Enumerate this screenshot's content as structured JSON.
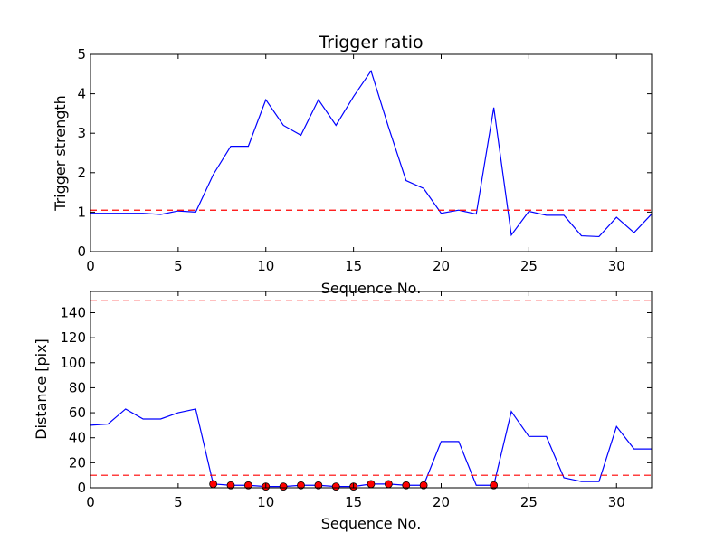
{
  "chart_data": [
    {
      "type": "line",
      "title": "Trigger ratio",
      "xlabel": "Sequence No.",
      "ylabel": "Trigger strength",
      "xlim": [
        0,
        32
      ],
      "ylim": [
        0,
        5
      ],
      "xticks": [
        0,
        5,
        10,
        15,
        20,
        25,
        30
      ],
      "yticks": [
        0,
        1,
        2,
        3,
        4,
        5
      ],
      "grid": false,
      "series": [
        {
          "color": "#0000ff",
          "x": [
            0,
            1,
            2,
            3,
            4,
            5,
            6,
            7,
            8,
            9,
            10,
            11,
            12,
            13,
            14,
            15,
            16,
            17,
            18,
            19,
            20,
            21,
            22,
            23,
            24,
            25,
            26,
            27,
            28,
            29,
            30,
            31,
            32
          ],
          "y": [
            0.97,
            0.97,
            0.97,
            0.97,
            0.94,
            1.03,
            1.0,
            1.95,
            2.67,
            2.67,
            3.85,
            3.2,
            2.95,
            3.85,
            3.2,
            3.93,
            4.58,
            3.15,
            1.8,
            1.6,
            0.97,
            1.05,
            0.95,
            3.65,
            0.42,
            1.02,
            0.92,
            0.92,
            0.4,
            0.38,
            0.87,
            0.48,
            0.95
          ]
        }
      ],
      "reference_lines": [
        {
          "y": 1.05,
          "color": "#ff0000",
          "style": "dashed"
        }
      ]
    },
    {
      "type": "line",
      "title": "",
      "xlabel": "Sequence No.",
      "ylabel": "Distance [pix]",
      "xlim": [
        0,
        32
      ],
      "ylim": [
        0,
        157
      ],
      "xticks": [
        0,
        5,
        10,
        15,
        20,
        25,
        30
      ],
      "yticks": [
        0,
        20,
        40,
        60,
        80,
        100,
        120,
        140
      ],
      "grid": false,
      "series": [
        {
          "color": "#0000ff",
          "x": [
            0,
            1,
            2,
            3,
            4,
            5,
            6,
            7,
            8,
            9,
            10,
            11,
            12,
            13,
            14,
            15,
            16,
            17,
            18,
            19,
            20,
            21,
            22,
            23,
            24,
            25,
            26,
            27,
            28,
            29,
            30,
            31,
            32
          ],
          "y": [
            50,
            51,
            63,
            55,
            55,
            60,
            63,
            3,
            2,
            2,
            1,
            1,
            2,
            2,
            1,
            1,
            3,
            3,
            2,
            2,
            37,
            37,
            2,
            2,
            61,
            41,
            41,
            8,
            5,
            5,
            49,
            31,
            31
          ]
        }
      ],
      "markers": {
        "color": "#ff0000",
        "x": [
          7,
          8,
          9,
          10,
          11,
          12,
          13,
          14,
          15,
          16,
          17,
          18,
          19,
          23
        ],
        "y": [
          3,
          2,
          2,
          1,
          1,
          2,
          2,
          1,
          1,
          3,
          3,
          2,
          2,
          2
        ]
      },
      "reference_lines": [
        {
          "y": 150,
          "color": "#ff0000",
          "style": "dashed"
        },
        {
          "y": 10,
          "color": "#ff0000",
          "style": "dashed"
        }
      ]
    }
  ]
}
